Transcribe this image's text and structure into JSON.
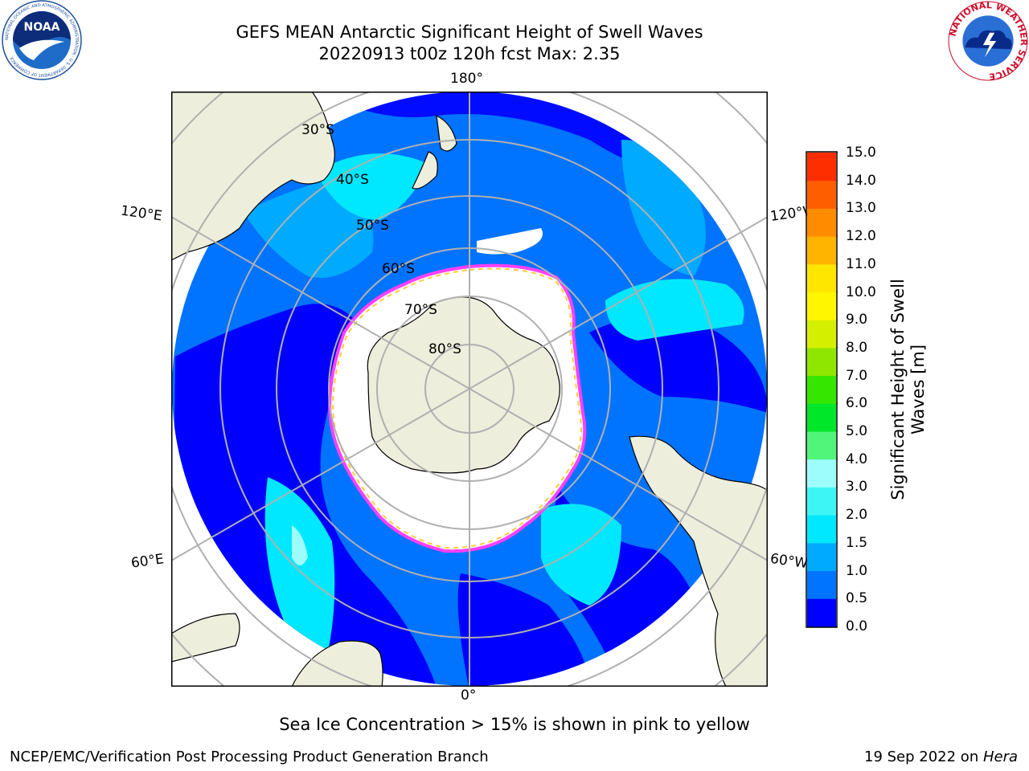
{
  "header": {
    "title_line1": "GEFS MEAN Antarctic Significant Height of Swell Waves",
    "title_line2": "20220913 t00z 120h fcst   Max: 2.35"
  },
  "logos": {
    "left": {
      "name": "noaa-logo",
      "text": "NOAA",
      "ring_text": "NATIONAL OCEANIC AND ATMOSPHERIC ADMINISTRATION · U.S. DEPARTMENT OF COMMERCE"
    },
    "right": {
      "name": "nws-logo",
      "ring_text": "NATIONAL WEATHER SERVICE"
    }
  },
  "map": {
    "projection": "south-polar-stereographic",
    "longitude_labels": {
      "top": "180°",
      "bottom": "0°",
      "upper_left": "120°E",
      "upper_right": "120°W",
      "lower_left": "60°E",
      "lower_right": "60°W"
    },
    "latitude_labels": [
      "30°S",
      "40°S",
      "50°S",
      "60°S",
      "70°S",
      "80°S"
    ],
    "colors": {
      "land": "#eeeedc",
      "ice": "#ffffff",
      "ice_edge_pink": "#ff40ff",
      "ice_edge_yellow": "#ffcc33",
      "grid": "#b0b0b0",
      "coast": "#000000"
    }
  },
  "colorbar": {
    "label_line1": "Significant Height of Swell",
    "label_line2": "Waves [m]",
    "ticks": [
      "0.0",
      "0.5",
      "1.0",
      "1.5",
      "2.0",
      "3.0",
      "4.0",
      "5.0",
      "6.0",
      "7.0",
      "8.0",
      "9.0",
      "10.0",
      "11.0",
      "12.0",
      "13.0",
      "14.0",
      "15.0"
    ],
    "colors": [
      "#0000ff",
      "#0073ff",
      "#00aaff",
      "#00e8ff",
      "#3ef5f5",
      "#9dfdfd",
      "#50f57a",
      "#00e629",
      "#34e600",
      "#8fe600",
      "#d4f000",
      "#fff600",
      "#ffe600",
      "#ffb400",
      "#ff8c00",
      "#ff5e00",
      "#ff2e00",
      "#ff0000"
    ]
  },
  "chart_data": {
    "type": "heatmap",
    "variable": "Significant Height of Swell Waves",
    "units": "m",
    "max": 2.35,
    "levels": [
      0.0,
      0.5,
      1.0,
      1.5,
      2.0,
      3.0,
      4.0,
      5.0,
      6.0,
      7.0,
      8.0,
      9.0,
      10.0,
      11.0,
      12.0,
      13.0,
      14.0,
      15.0
    ]
  },
  "footnote": "Sea Ice Concentration > 15% is shown in pink to yellow",
  "footer": {
    "left": "NCEP/EMC/Verification Post Processing Product Generation Branch",
    "right_prefix": "19 Sep 2022 on ",
    "right_machine": "Hera"
  }
}
